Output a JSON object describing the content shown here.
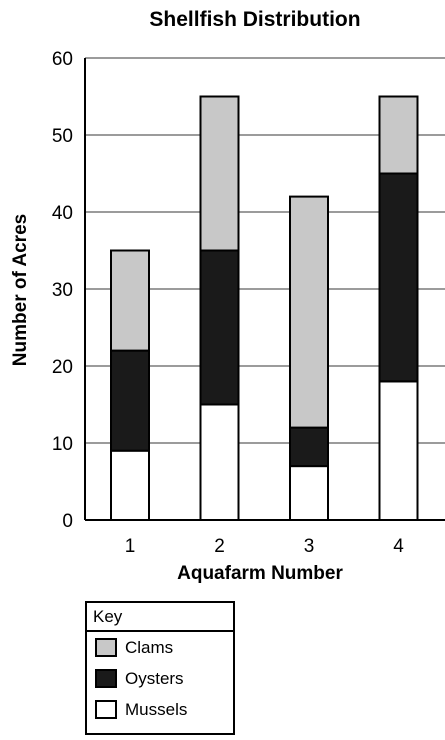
{
  "chart_data": {
    "type": "bar",
    "stacked": true,
    "title": "Shellfish Distribution",
    "xlabel": "Aquafarm Number",
    "ylabel": "Number of Acres",
    "categories": [
      "1",
      "2",
      "3",
      "4"
    ],
    "ylim": [
      0,
      60
    ],
    "yticks": [
      0,
      10,
      20,
      30,
      40,
      50,
      60
    ],
    "grid": true,
    "series": [
      {
        "name": "Mussels",
        "color": "#ffffff",
        "values": [
          9,
          15,
          7,
          18
        ]
      },
      {
        "name": "Oysters",
        "color": "#1a1a1a",
        "values": [
          13,
          20,
          5,
          27
        ]
      },
      {
        "name": "Clams",
        "color": "#c8c8c8",
        "values": [
          13,
          20,
          30,
          10
        ]
      }
    ],
    "legend": {
      "title": "Key",
      "placement": "bottom-left",
      "items": [
        {
          "label": "Clams",
          "color": "#c8c8c8"
        },
        {
          "label": "Oysters",
          "color": "#1a1a1a"
        },
        {
          "label": "Mussels",
          "color": "#ffffff"
        }
      ]
    }
  }
}
